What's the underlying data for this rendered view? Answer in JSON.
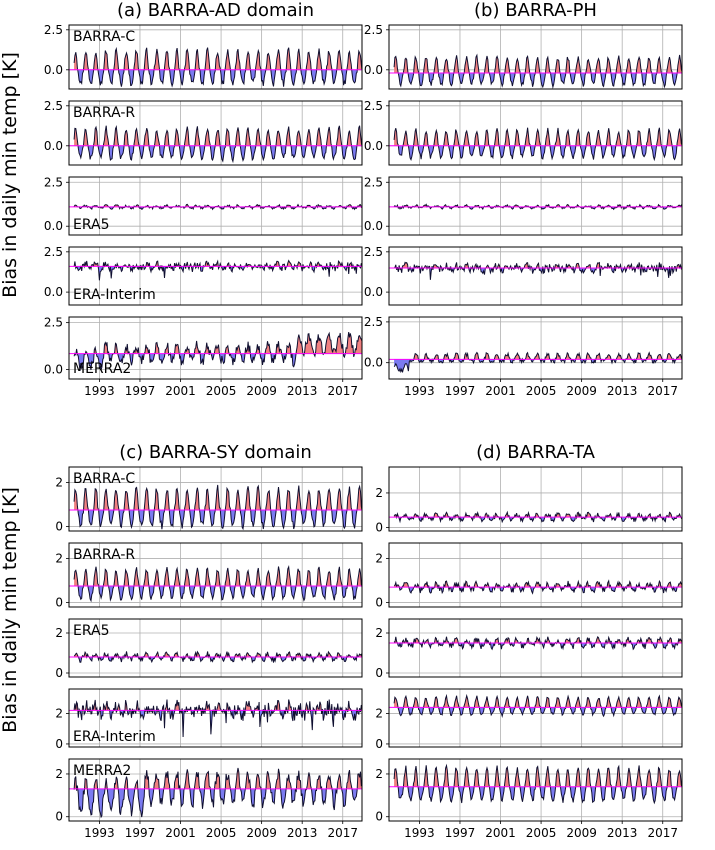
{
  "figure": {
    "ylabel": "Bias in daily min temp [K]",
    "x_ticks": [
      "1993",
      "1997",
      "2001",
      "2005",
      "2009",
      "2013",
      "2017"
    ]
  },
  "colors": {
    "above": "#f08080",
    "below": "#7b7bf0",
    "line": "#101030",
    "ref": "#ff00ff"
  },
  "chart_data": [
    {
      "type": "area",
      "title": "(a) BARRA-AD domain",
      "x_range": [
        1990,
        2018.9
      ],
      "panels": [
        {
          "label": "BARRA-C",
          "label_pos": "top",
          "yticks": [
            "0.0",
            "2.5"
          ],
          "ylim": [
            -1.2,
            2.8
          ],
          "ref": 0.0,
          "pattern": "seasonal",
          "amp": 1.1
        },
        {
          "label": "BARRA-R",
          "label_pos": "top",
          "yticks": [
            "0.0",
            "2.5"
          ],
          "ylim": [
            -1.2,
            2.8
          ],
          "ref": 0.0,
          "pattern": "seasonal",
          "amp": 1.0
        },
        {
          "label": "ERA5",
          "label_pos": "bottom",
          "yticks": [
            "0.0",
            "2.5"
          ],
          "ylim": [
            -0.5,
            2.8
          ],
          "ref": 1.1,
          "pattern": "flat",
          "amp": 0.15
        },
        {
          "label": "ERA-Interim",
          "label_pos": "bottom",
          "yticks": [
            "0.0",
            "2.5"
          ],
          "ylim": [
            -0.8,
            2.8
          ],
          "ref": 1.6,
          "pattern": "noisy",
          "amp": 0.3
        },
        {
          "label": "MERRA2",
          "label_pos": "bottom",
          "yticks": [
            "0.0",
            "2.5"
          ],
          "ylim": [
            -0.5,
            2.8
          ],
          "ref": 0.85,
          "pattern": "merra",
          "amp": 0.55
        }
      ]
    },
    {
      "type": "area",
      "title": "(b) BARRA-PH",
      "x_range": [
        1990,
        2018.9
      ],
      "panels": [
        {
          "label": "",
          "yticks": [
            "0.0",
            "2.5"
          ],
          "ylim": [
            -1.2,
            2.8
          ],
          "ref": -0.2,
          "pattern": "seasonal",
          "amp": 0.9
        },
        {
          "label": "",
          "yticks": [
            "0.0",
            "2.5"
          ],
          "ylim": [
            -1.2,
            2.8
          ],
          "ref": 0.0,
          "pattern": "seasonal",
          "amp": 0.9
        },
        {
          "label": "",
          "yticks": [
            "0.0",
            "2.5"
          ],
          "ylim": [
            -0.5,
            2.8
          ],
          "ref": 1.1,
          "pattern": "flat",
          "amp": 0.15
        },
        {
          "label": "",
          "yticks": [
            "0.0",
            "2.5"
          ],
          "ylim": [
            -0.8,
            2.8
          ],
          "ref": 1.5,
          "pattern": "noisy",
          "amp": 0.3
        },
        {
          "label": "",
          "yticks": [
            "0.0",
            "2.5"
          ],
          "ylim": [
            -1.0,
            2.8
          ],
          "ref": 0.2,
          "pattern": "smallpos",
          "amp": 0.4
        }
      ]
    },
    {
      "type": "area",
      "title": "(c) BARRA-SY domain",
      "x_range": [
        1990,
        2018.9
      ],
      "panels": [
        {
          "label": "BARRA-C",
          "label_pos": "top",
          "yticks": [
            "0",
            "2"
          ],
          "ylim": [
            -0.2,
            2.7
          ],
          "ref": 0.75,
          "pattern": "seasonal",
          "amp": 0.9
        },
        {
          "label": "BARRA-R",
          "label_pos": "top",
          "yticks": [
            "0",
            "2"
          ],
          "ylim": [
            -0.2,
            2.7
          ],
          "ref": 0.75,
          "pattern": "seasonal",
          "amp": 0.7
        },
        {
          "label": "ERA5",
          "label_pos": "top",
          "yticks": [
            "0",
            "2"
          ],
          "ylim": [
            -0.2,
            2.7
          ],
          "ref": 0.8,
          "pattern": "flat",
          "amp": 0.3
        },
        {
          "label": "ERA-Interim",
          "label_pos": "bottom",
          "yticks": [
            "0",
            "2"
          ],
          "ylim": [
            -0.2,
            3.6
          ],
          "ref": 2.2,
          "pattern": "noisy",
          "amp": 0.6
        },
        {
          "label": "MERRA2",
          "label_pos": "top",
          "yticks": [
            "0",
            "2"
          ],
          "ylim": [
            -0.2,
            2.7
          ],
          "ref": 1.3,
          "pattern": "merra2b",
          "amp": 0.8
        }
      ]
    },
    {
      "type": "area",
      "title": "(d) BARRA-TA",
      "x_range": [
        1990,
        2018.9
      ],
      "panels": [
        {
          "label": "",
          "yticks": [
            "0",
            "2"
          ],
          "ylim": [
            -0.2,
            3.5
          ],
          "ref": 0.6,
          "pattern": "flat",
          "amp": 0.3
        },
        {
          "label": "",
          "yticks": [
            "0",
            "2"
          ],
          "ylim": [
            -0.2,
            2.7
          ],
          "ref": 0.7,
          "pattern": "flat",
          "amp": 0.3
        },
        {
          "label": "",
          "yticks": [
            "0",
            "2"
          ],
          "ylim": [
            -0.2,
            2.7
          ],
          "ref": 1.5,
          "pattern": "flat",
          "amp": 0.35
        },
        {
          "label": "",
          "yticks": [
            "0",
            "2"
          ],
          "ylim": [
            -0.2,
            3.6
          ],
          "ref": 2.4,
          "pattern": "seasonal",
          "amp": 0.6
        },
        {
          "label": "",
          "yticks": [
            "0",
            "2"
          ],
          "ylim": [
            -0.2,
            2.7
          ],
          "ref": 1.4,
          "pattern": "seasonal",
          "amp": 0.8
        }
      ]
    }
  ]
}
